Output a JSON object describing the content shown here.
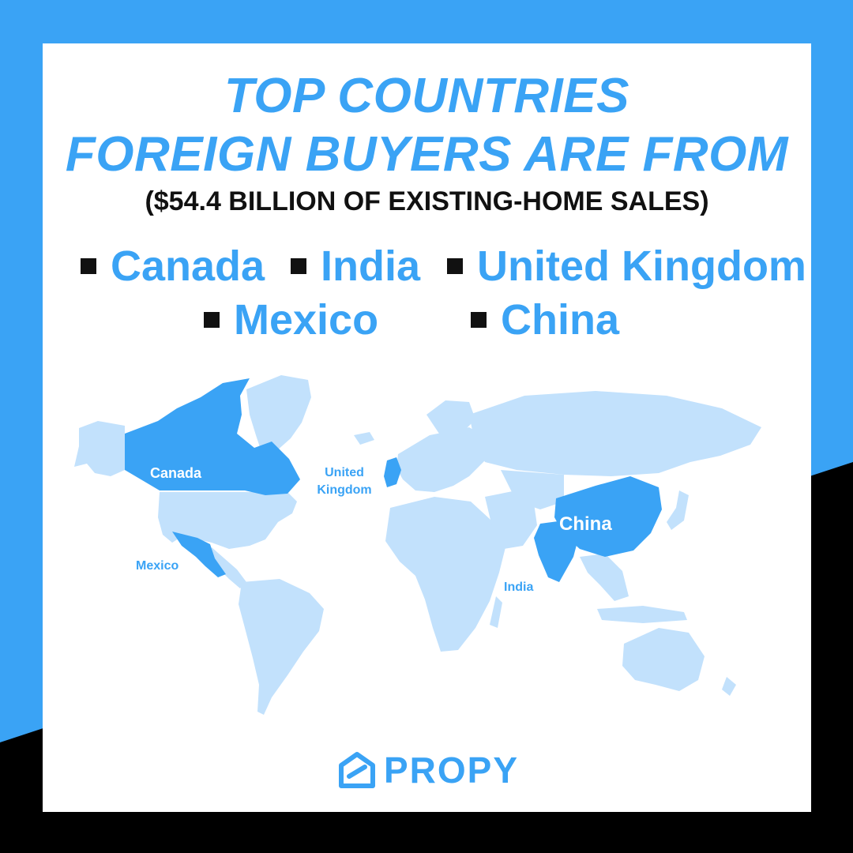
{
  "title": {
    "line1": "TOP COUNTRIES",
    "line2": "FOREIGN BUYERS ARE FROM"
  },
  "subtitle": "($54.4 BILLION OF EXISTING-HOME SALES)",
  "countries": [
    "Canada",
    "India",
    "United Kingdom",
    "Mexico",
    "China"
  ],
  "map_labels": {
    "canada": "Canada",
    "united_kingdom_line1": "United",
    "united_kingdom_line2": "Kingdom",
    "mexico": "Mexico",
    "china": "China",
    "india": "India"
  },
  "logo": {
    "text": "PROPY",
    "icon": "house-icon"
  },
  "colors": {
    "accent": "#3aa3f5",
    "highlight_country": "#3aa3f5",
    "land": "#c2e1fc",
    "text_dark": "#111111",
    "background_black": "#000000"
  }
}
